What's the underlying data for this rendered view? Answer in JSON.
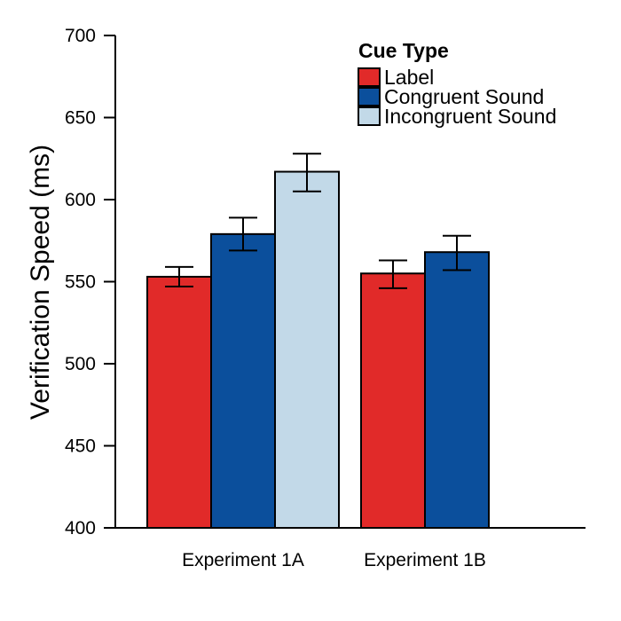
{
  "chart_data": {
    "type": "bar",
    "title": "",
    "xlabel": "",
    "ylabel": "Verification Speed (ms)",
    "ylim": [
      400,
      700
    ],
    "yticks": [
      400,
      450,
      500,
      550,
      600,
      650,
      700
    ],
    "categories": [
      "Experiment 1A",
      "Experiment 1B"
    ],
    "legend": {
      "title": "Cue Type",
      "placement": "top-right"
    },
    "series": [
      {
        "name": "Label",
        "color": "#E12A29",
        "values": [
          553,
          555
        ],
        "error_low": [
          547,
          546
        ],
        "error_high": [
          559,
          563
        ]
      },
      {
        "name": "Congruent Sound",
        "color": "#0B4F9C",
        "values": [
          579,
          568
        ],
        "error_low": [
          569,
          557
        ],
        "error_high": [
          589,
          578
        ]
      },
      {
        "name": "Incongruent Sound",
        "color": "#C2D9E8",
        "values": [
          617,
          null
        ],
        "error_low": [
          605,
          null
        ],
        "error_high": [
          628,
          null
        ]
      }
    ]
  }
}
